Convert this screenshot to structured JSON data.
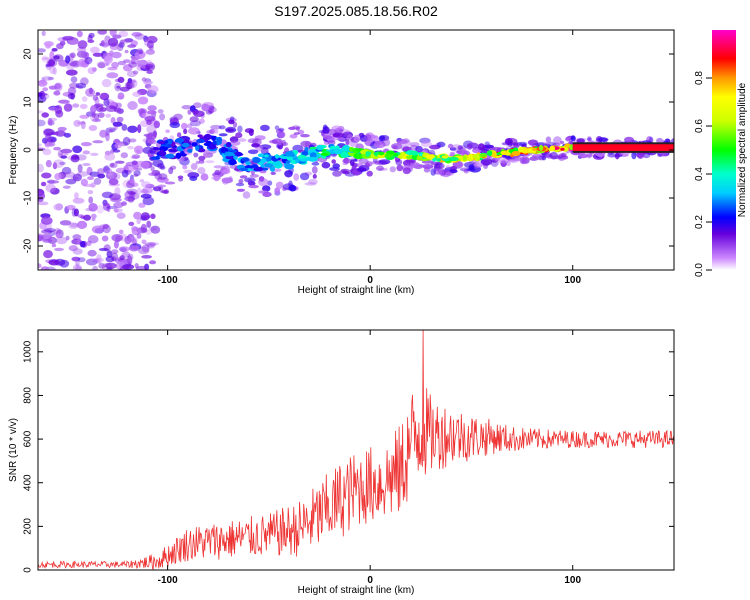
{
  "title": "S197.2025.085.18.56.R02",
  "chart_data": [
    {
      "type": "heatmap",
      "xlabel": "Height of straight line (km)",
      "ylabel": "Frequency (Hz)",
      "xlim": [
        -164,
        150
      ],
      "ylim": [
        -25,
        25
      ],
      "x_ticks": [
        -100,
        0,
        100
      ],
      "y_ticks": [
        -20,
        -10,
        0,
        10,
        20
      ],
      "colorbar": {
        "label": "Normalized spectral amplitude",
        "range": [
          0,
          1
        ],
        "ticks": [
          "0.0",
          "0.2",
          "0.4",
          "0.6",
          "0.8"
        ]
      },
      "ridge": [
        {
          "x": -100,
          "f": 0,
          "amp": 0.25
        },
        {
          "x": -80,
          "f": 2,
          "amp": 0.25
        },
        {
          "x": -60,
          "f": -3,
          "amp": 0.3
        },
        {
          "x": -40,
          "f": -2,
          "amp": 0.35
        },
        {
          "x": -20,
          "f": 0,
          "amp": 0.45
        },
        {
          "x": 0,
          "f": -1,
          "amp": 0.55
        },
        {
          "x": 20,
          "f": -1,
          "amp": 0.65
        },
        {
          "x": 40,
          "f": -2,
          "amp": 0.7
        },
        {
          "x": 60,
          "f": -1,
          "amp": 0.75
        },
        {
          "x": 80,
          "f": 0,
          "amp": 0.8
        },
        {
          "x": 100,
          "f": 0.5,
          "amp": 0.9
        },
        {
          "x": 150,
          "f": 0.5,
          "amp": 1.0
        }
      ]
    },
    {
      "type": "line",
      "xlabel": "Height of straight line (km)",
      "ylabel": "SNR (10 * v/v)",
      "xlim": [
        -164,
        150
      ],
      "ylim": [
        0,
        1100
      ],
      "x_ticks": [
        -100,
        0,
        100
      ],
      "y_ticks": [
        0,
        200,
        400,
        600,
        800,
        1000
      ],
      "color": "#ee3333",
      "envelope": {
        "x": [
          -164,
          -120,
          -105,
          -90,
          -70,
          -50,
          -35,
          -25,
          -15,
          -5,
          5,
          15,
          20,
          25,
          30,
          40,
          50,
          60,
          70,
          80,
          100,
          120,
          150
        ],
        "center": [
          25,
          25,
          40,
          120,
          140,
          160,
          190,
          250,
          320,
          380,
          400,
          450,
          580,
          650,
          620,
          620,
          610,
          610,
          600,
          600,
          600,
          600,
          600
        ],
        "spread": [
          15,
          15,
          40,
          80,
          90,
          100,
          130,
          160,
          180,
          180,
          180,
          220,
          250,
          250,
          180,
          140,
          110,
          80,
          60,
          50,
          40,
          40,
          40
        ]
      },
      "peak": {
        "x": 26,
        "y": 1100
      }
    }
  ]
}
